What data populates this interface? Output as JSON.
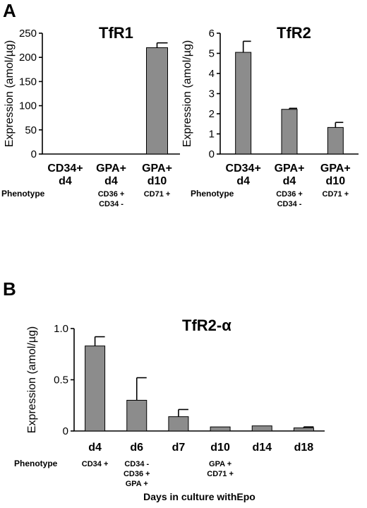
{
  "panels": {
    "a": {
      "letter": "A"
    },
    "b": {
      "letter": "B"
    }
  },
  "phenotype_label": "Phenotype",
  "bar_color": "#8c8c8c",
  "chart_data": [
    {
      "id": "tfr1",
      "type": "bar",
      "title": "TfR1",
      "ylabel": "Expression (amol/µg)",
      "xlabel": "",
      "ylim": [
        0,
        250
      ],
      "yticks": [
        "0",
        "50",
        "100",
        "150",
        "200",
        "250"
      ],
      "categories": [
        [
          "CD34+",
          "d4"
        ],
        [
          "GPA+",
          "d4"
        ],
        [
          "GPA+",
          "d10"
        ]
      ],
      "phenotypes": [
        [],
        [
          "CD36 +",
          "CD34 -"
        ],
        [
          "CD71 +"
        ]
      ],
      "values": [
        0,
        0,
        220
      ],
      "errors": [
        0,
        0,
        10
      ]
    },
    {
      "id": "tfr2",
      "type": "bar",
      "title": "TfR2",
      "ylabel": "Expression (amol/µg)",
      "xlabel": "",
      "ylim": [
        0,
        6
      ],
      "yticks": [
        "0",
        "1",
        "2",
        "3",
        "4",
        "5",
        "6"
      ],
      "categories": [
        [
          "CD34+",
          "d4"
        ],
        [
          "GPA+",
          "d4"
        ],
        [
          "GPA+",
          "d10"
        ]
      ],
      "phenotypes": [
        [],
        [
          "CD36 +",
          "CD34 -"
        ],
        [
          "CD71 +"
        ]
      ],
      "values": [
        5.05,
        2.22,
        1.32
      ],
      "errors": [
        0.55,
        0.05,
        0.25
      ]
    },
    {
      "id": "tfr2a",
      "type": "bar",
      "title": "TfR2-α",
      "ylabel": "Expression (amol/µg)",
      "xlabel": "Days in culture withEpo",
      "ylim": [
        0,
        1.0
      ],
      "yticks": [
        "0",
        "0.5",
        "1.0"
      ],
      "categories": [
        [
          "d4"
        ],
        [
          "d6"
        ],
        [
          "d7"
        ],
        [
          "d10"
        ],
        [
          "d14"
        ],
        [
          "d18"
        ]
      ],
      "phenotypes": [
        [
          "CD34 +"
        ],
        [
          "CD34 -",
          "CD36 +",
          "GPA +"
        ],
        [],
        [
          "GPA +",
          "CD71 +"
        ],
        [],
        []
      ],
      "values": [
        0.83,
        0.3,
        0.14,
        0.04,
        0.05,
        0.03
      ],
      "errors": [
        0.09,
        0.22,
        0.07,
        0.0,
        0.0,
        0.01
      ]
    }
  ]
}
